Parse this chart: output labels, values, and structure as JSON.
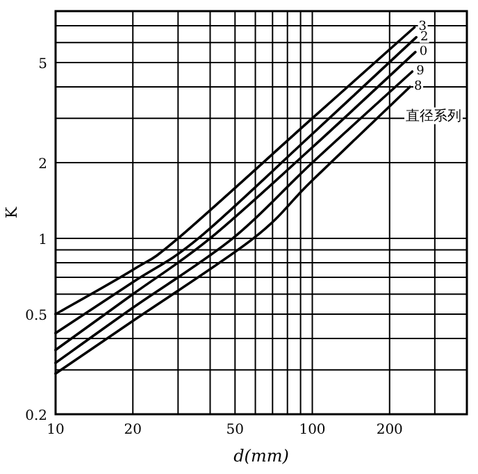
{
  "chart_data": {
    "type": "line",
    "xlabel": "d(mm)",
    "ylabel": "K",
    "log": "xy",
    "grid": true,
    "legend": false,
    "marker": "none",
    "line_style": "solid",
    "xlim": [
      10,
      400
    ],
    "ylim": [
      0.2,
      8
    ],
    "xticks": [
      10,
      20,
      {
        "value": 30,
        "label": null
      },
      {
        "value": 40,
        "label": null
      },
      50,
      {
        "value": 60,
        "label": null
      },
      {
        "value": 70,
        "label": null
      },
      {
        "value": 80,
        "label": null
      },
      {
        "value": 90,
        "label": null
      },
      100,
      200,
      {
        "value": 300,
        "label": null
      },
      {
        "value": 400,
        "label": null
      }
    ],
    "yticks": [
      0.2,
      {
        "value": 0.3,
        "label": null
      },
      {
        "value": 0.4,
        "label": null
      },
      0.5,
      {
        "value": 0.6,
        "label": null
      },
      {
        "value": 0.7,
        "label": null
      },
      {
        "value": 0.8,
        "label": null
      },
      {
        "value": 0.9,
        "label": null
      },
      1,
      2,
      {
        "value": 3,
        "label": null
      },
      {
        "value": 4,
        "label": null
      },
      5,
      {
        "value": 6,
        "label": null
      },
      {
        "value": 7,
        "label": null
      },
      {
        "value": 8,
        "label": null
      }
    ],
    "series": [
      {
        "name": "3",
        "color": "#000000",
        "x": [
          10,
          20,
          30,
          100,
          250
        ],
        "values": [
          0.5,
          0.75,
          1,
          3.0,
          6.9
        ]
      },
      {
        "name": "2",
        "color": "#000000",
        "x": [
          10,
          20,
          36,
          100,
          254
        ],
        "values": [
          0.42,
          0.67,
          1,
          2.6,
          6.3
        ]
      },
      {
        "name": "0",
        "color": "#000000",
        "x": [
          10,
          20,
          40,
          100,
          252
        ],
        "values": [
          0.36,
          0.6,
          1,
          2.3,
          5.5
        ]
      },
      {
        "name": "9",
        "color": "#000000",
        "x": [
          10,
          20,
          49,
          100,
          245
        ],
        "values": [
          0.32,
          0.53,
          1,
          2.0,
          4.6
        ]
      },
      {
        "name": "8",
        "color": "#000000",
        "x": [
          10,
          20,
          59,
          100,
          240
        ],
        "values": [
          0.29,
          0.47,
          1,
          1.7,
          4.0
        ]
      }
    ],
    "annotations": [
      "直径系列"
    ]
  }
}
